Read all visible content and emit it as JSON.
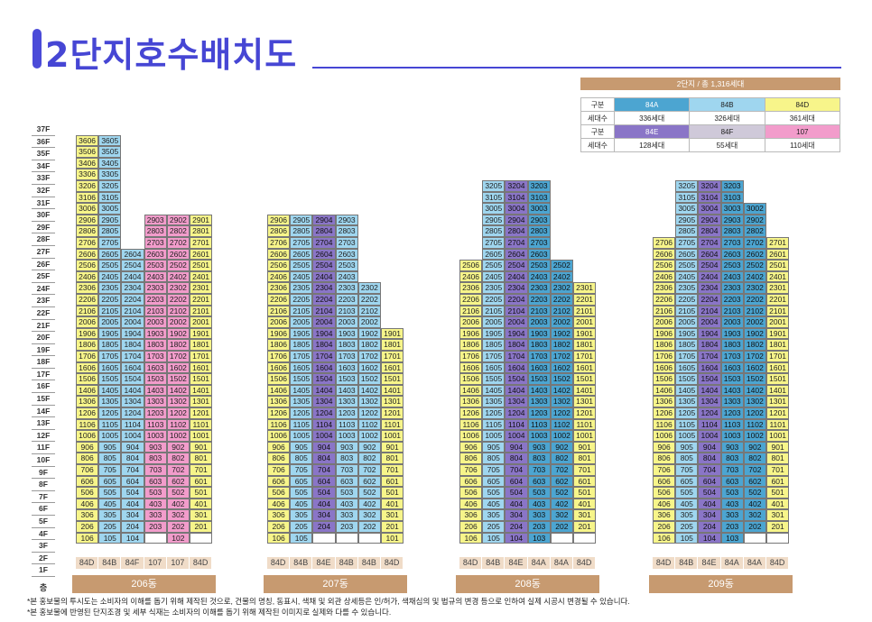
{
  "title": "2단지호수배치도",
  "legend": {
    "head": "2단지 / 총 1,316세대",
    "rows": [
      {
        "label": "구분",
        "items": [
          {
            "text": "84A",
            "color": "#4ca5d1"
          },
          {
            "text": "84B",
            "color": "#9fd6ef"
          },
          {
            "text": "84D",
            "color": "#f7f58a"
          }
        ]
      },
      {
        "label": "세대수",
        "items": [
          {
            "text": "336세대",
            "color": "#ffffff"
          },
          {
            "text": "326세대",
            "color": "#ffffff"
          },
          {
            "text": "361세대",
            "color": "#ffffff"
          }
        ]
      },
      {
        "label": "구분",
        "items": [
          {
            "text": "84E",
            "color": "#8a75c7"
          },
          {
            "text": "84F",
            "color": "#cfc9d9"
          },
          {
            "text": "107",
            "color": "#f29ccb"
          }
        ]
      },
      {
        "label": "세대수",
        "items": [
          {
            "text": "128세대",
            "color": "#ffffff"
          },
          {
            "text": "55세대",
            "color": "#ffffff"
          },
          {
            "text": "110세대",
            "color": "#ffffff"
          }
        ]
      }
    ]
  },
  "floors": [
    "37F",
    "36F",
    "35F",
    "34F",
    "33F",
    "32F",
    "31F",
    "30F",
    "29F",
    "28F",
    "27F",
    "26F",
    "25F",
    "24F",
    "23F",
    "22F",
    "21F",
    "20F",
    "19F",
    "18F",
    "17F",
    "16F",
    "15F",
    "14F",
    "13F",
    "12F",
    "11F",
    "10F",
    "9F",
    "8F",
    "7F",
    "6F",
    "5F",
    "4F",
    "3F",
    "2F",
    "1F"
  ],
  "floor_base": "층",
  "buildings": [
    {
      "name": "206동",
      "types": [
        "84D",
        "84B",
        "84F",
        "107",
        "107",
        "84D"
      ],
      "lines": [
        {
          "unit": 6,
          "top": 36,
          "color": "y"
        },
        {
          "unit": 5,
          "top": 36,
          "color": "b"
        },
        {
          "unit": 4,
          "top": 26,
          "color": "b"
        },
        {
          "unit": 3,
          "top": 29,
          "color": "p"
        },
        {
          "unit": 2,
          "top": 29,
          "color": "p"
        },
        {
          "unit": 1,
          "top": 29,
          "color": "y"
        }
      ]
    },
    {
      "name": "207동",
      "types": [
        "84D",
        "84B",
        "84E",
        "84B",
        "84B",
        "84D"
      ],
      "lines": [
        {
          "unit": 6,
          "top": 29,
          "color": "y"
        },
        {
          "unit": 5,
          "top": 29,
          "color": "b"
        },
        {
          "unit": 4,
          "top": 29,
          "color": "v"
        },
        {
          "unit": 3,
          "top": 29,
          "color": "b"
        },
        {
          "unit": 2,
          "top": 23,
          "color": "b"
        },
        {
          "unit": 1,
          "top": 19,
          "color": "y"
        }
      ]
    },
    {
      "name": "208동",
      "types": [
        "84D",
        "84B",
        "84E",
        "84A",
        "84A",
        "84D"
      ],
      "lines": [
        {
          "unit": 6,
          "top": 25,
          "color": "y"
        },
        {
          "unit": 5,
          "top": 32,
          "color": "b"
        },
        {
          "unit": 4,
          "top": 32,
          "color": "v"
        },
        {
          "unit": 3,
          "top": 32,
          "color": "d"
        },
        {
          "unit": 2,
          "top": 25,
          "color": "d"
        },
        {
          "unit": 1,
          "top": 23,
          "color": "y"
        }
      ]
    },
    {
      "name": "209동",
      "types": [
        "84D",
        "84B",
        "84E",
        "84A",
        "84A",
        "84D"
      ],
      "lines": [
        {
          "unit": 6,
          "top": 27,
          "color": "y"
        },
        {
          "unit": 5,
          "top": 32,
          "color": "b"
        },
        {
          "unit": 4,
          "top": 32,
          "color": "v"
        },
        {
          "unit": 3,
          "top": 32,
          "color": "d"
        },
        {
          "unit": 2,
          "top": 30,
          "color": "d"
        },
        {
          "unit": 1,
          "top": 27,
          "color": "y"
        }
      ]
    }
  ],
  "notes": [
    "*본 홍보물의 투시도는 소비자의 이해를 돕기 위해 제작된 것으로, 건물의 명칭, 동표시, 색채 및 외관 상세등은 인/허가, 색채심의 및 법규의 변경 등으로 인하여 실제 시공시 변경될 수 있습니다.",
    "*본 홍보물에 반영된 단지조경 및 세부 식재는 소비자의 이해를 돕기 위해 제작된 이미지로 실제와 다를 수 있습니다."
  ]
}
